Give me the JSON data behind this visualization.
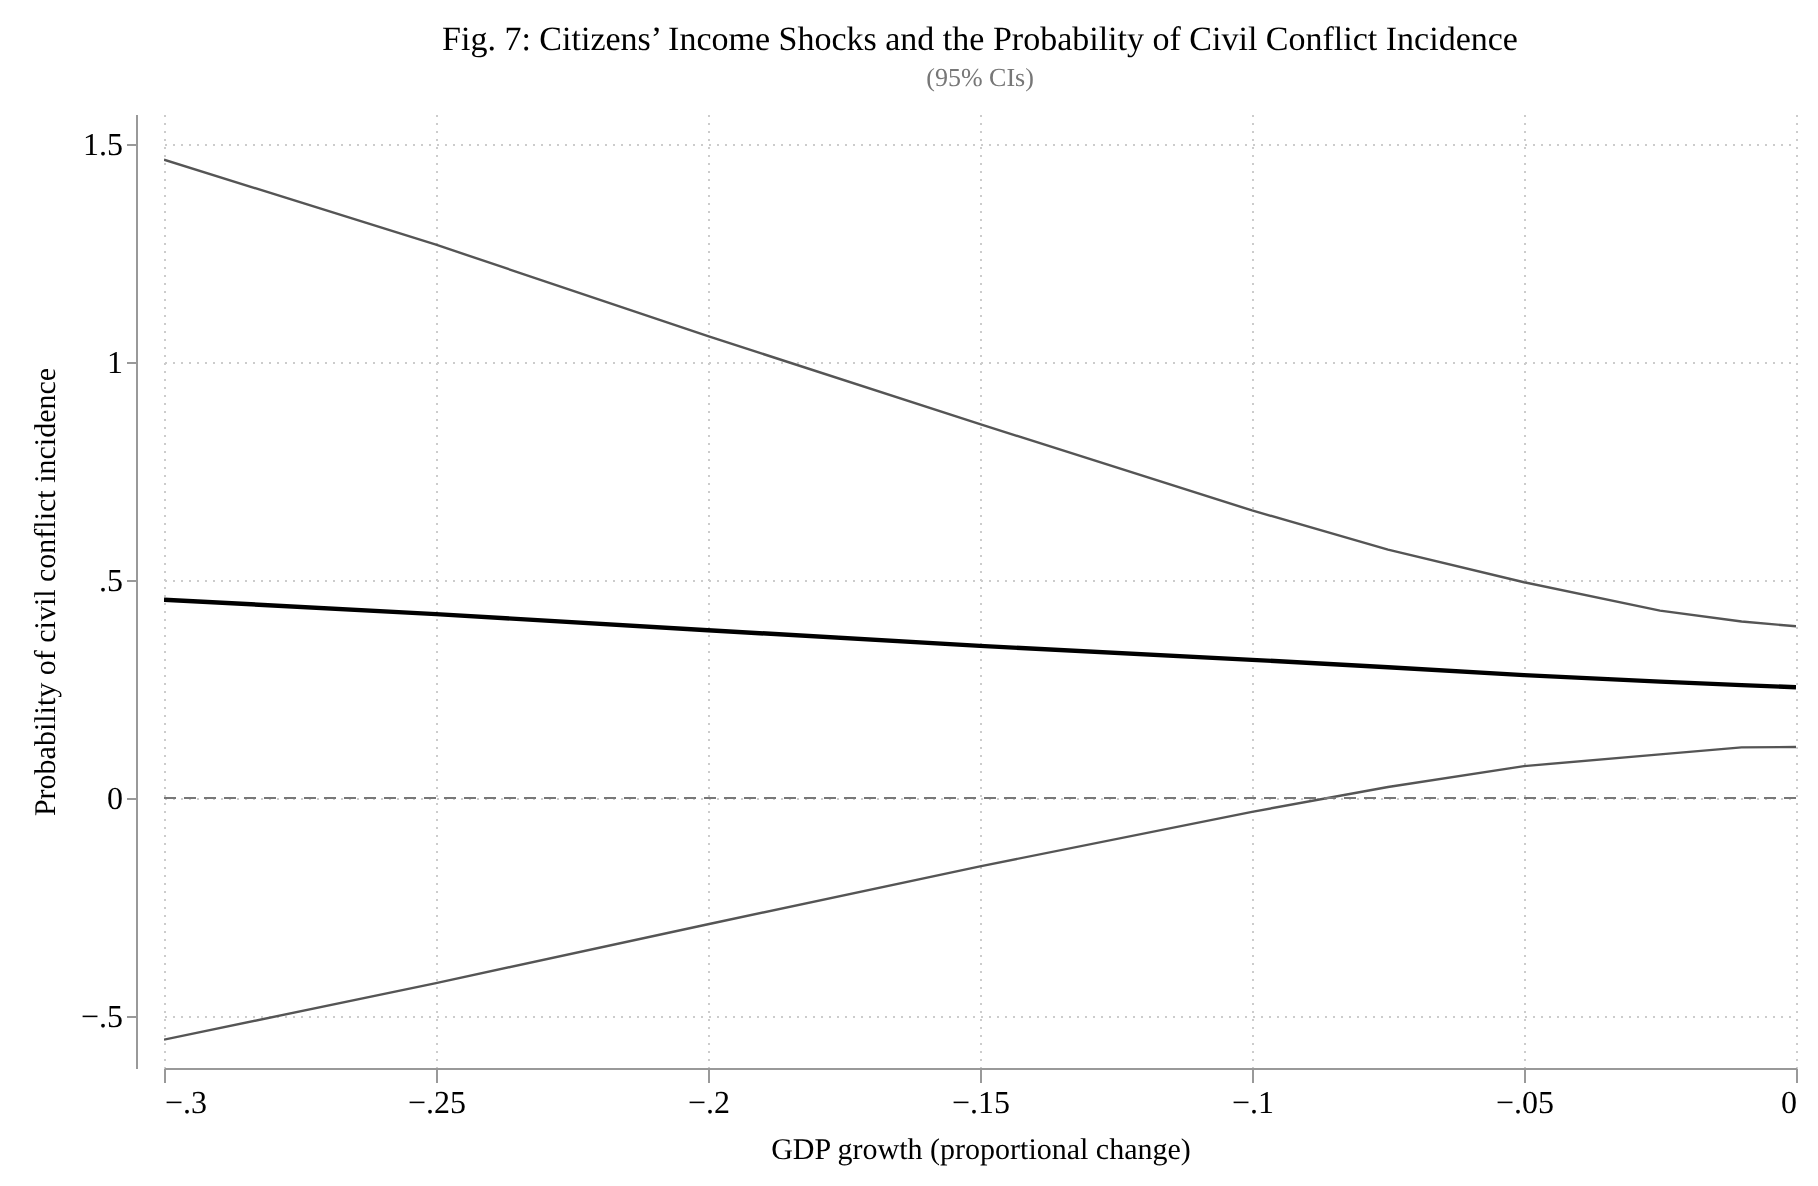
{
  "chart_data": {
    "type": "line",
    "title": "Fig. 7: Citizens’ Income Shocks and the Probability of Civil Conflict Incidence",
    "subtitle": "(95% CIs)",
    "xlabel": "GDP growth (proportional change)",
    "ylabel": "Probability of civil conflict incidence",
    "x": [
      -0.3,
      -0.25,
      -0.2,
      -0.15,
      -0.1,
      -0.075,
      -0.05,
      -0.025,
      -0.01,
      0
    ],
    "series": [
      {
        "color": "#555555",
        "values": [
          1.465,
          1.27,
          1.06,
          0.858,
          0.66,
          0.57,
          0.495,
          0.43,
          0.405,
          0.394
        ]
      },
      {
        "color": "#000000",
        "values": [
          0.455,
          0.422,
          0.385,
          0.349,
          0.317,
          0.3,
          0.282,
          0.267,
          0.259,
          0.254
        ]
      },
      {
        "color": "#555555",
        "values": [
          -0.555,
          -0.425,
          -0.29,
          -0.157,
          -0.032,
          0.025,
          0.073,
          0.1,
          0.116,
          0.117
        ]
      }
    ],
    "xlim": [
      -0.3,
      0
    ],
    "ylim": [
      -0.62,
      1.57
    ],
    "xticks": [
      {
        "value": -0.3,
        "label": "−.3"
      },
      {
        "value": -0.25,
        "label": "−.25"
      },
      {
        "value": -0.2,
        "label": "−.2"
      },
      {
        "value": -0.15,
        "label": "−.15"
      },
      {
        "value": -0.1,
        "label": "−.1"
      },
      {
        "value": -0.05,
        "label": "−.05"
      },
      0
    ],
    "yticks": [
      {
        "value": -0.5,
        "label": "−.5"
      },
      0,
      {
        "value": 0.5,
        "label": ".5"
      },
      1,
      1.5
    ],
    "ref_lines": [
      {
        "axis": "y",
        "value": 0,
        "color": "#777777",
        "line_style": "dashed"
      }
    ],
    "grid": true,
    "marker": "none",
    "line_style": "solid"
  }
}
